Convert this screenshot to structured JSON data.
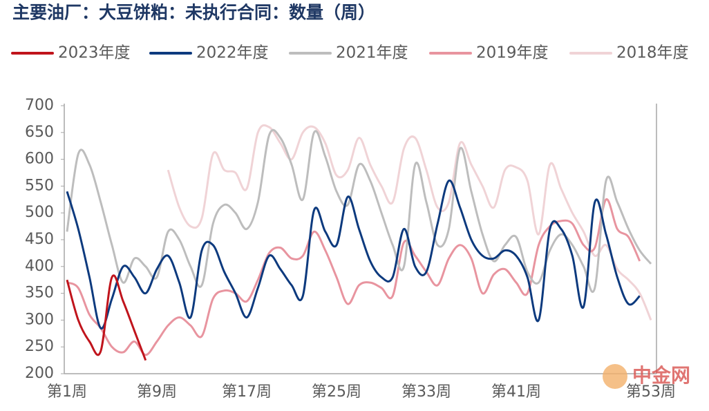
{
  "chart_data": {
    "type": "line",
    "title": "主要油厂：大豆饼粕：未执行合同：数量（周）",
    "watermark": "中金网",
    "categories": [
      "第1周",
      null,
      null,
      null,
      null,
      null,
      null,
      null,
      "第9周",
      null,
      null,
      null,
      null,
      null,
      null,
      null,
      "第17周",
      null,
      null,
      null,
      null,
      null,
      null,
      null,
      "第25周",
      null,
      null,
      null,
      null,
      null,
      null,
      null,
      "第33周",
      null,
      null,
      null,
      null,
      null,
      null,
      null,
      "第41周",
      null,
      null,
      null,
      null,
      null,
      null,
      null,
      null,
      null,
      null,
      null,
      "第53周"
    ],
    "ylim": [
      200,
      700
    ],
    "yticks": [
      200,
      250,
      300,
      350,
      400,
      450,
      500,
      550,
      600,
      650,
      700
    ],
    "series": [
      {
        "name": "2023年度",
        "color": "#c0141c",
        "values": [
          375,
          300,
          260,
          242,
          380,
          335,
          280,
          225,
          null,
          null,
          null,
          null,
          null,
          null,
          null,
          null,
          null,
          null,
          null,
          null,
          null,
          null,
          null,
          null,
          null,
          null,
          null,
          null,
          null,
          null,
          null,
          null,
          null,
          null,
          null,
          null,
          null,
          null,
          null,
          null,
          null,
          null,
          null,
          null,
          null,
          null,
          null,
          null,
          null,
          null,
          null,
          null,
          null
        ]
      },
      {
        "name": "2022年度",
        "color": "#0d3a7e",
        "values": [
          540,
          470,
          380,
          285,
          340,
          400,
          380,
          350,
          395,
          420,
          370,
          305,
          430,
          440,
          390,
          350,
          305,
          360,
          420,
          395,
          365,
          345,
          505,
          465,
          440,
          530,
          470,
          410,
          380,
          380,
          470,
          400,
          390,
          480,
          560,
          510,
          450,
          420,
          415,
          430,
          420,
          380,
          300,
          470,
          470,
          420,
          325,
          520,
          460,
          380,
          330,
          345,
          null
        ]
      },
      {
        "name": "2021年度",
        "color": "#bdbdbd",
        "values": [
          465,
          610,
          590,
          520,
          440,
          370,
          415,
          400,
          380,
          465,
          450,
          400,
          365,
          480,
          515,
          500,
          470,
          520,
          645,
          640,
          590,
          525,
          650,
          605,
          540,
          515,
          590,
          560,
          500,
          440,
          400,
          590,
          520,
          440,
          470,
          620,
          540,
          460,
          410,
          440,
          455,
          390,
          370,
          430,
          460,
          440,
          400,
          360,
          560,
          520,
          470,
          430,
          405
        ]
      },
      {
        "name": "2019年度",
        "color": "#e8949f",
        "values": [
          370,
          360,
          310,
          285,
          250,
          240,
          260,
          235,
          260,
          290,
          305,
          290,
          270,
          340,
          355,
          350,
          335,
          375,
          425,
          435,
          415,
          420,
          465,
          430,
          380,
          330,
          365,
          370,
          360,
          345,
          445,
          420,
          390,
          365,
          415,
          440,
          415,
          350,
          385,
          395,
          370,
          350,
          440,
          475,
          485,
          480,
          440,
          435,
          525,
          470,
          455,
          410,
          null
        ]
      },
      {
        "name": "2018年度",
        "color": "#f0d3d6",
        "values": [
          null,
          null,
          null,
          null,
          null,
          null,
          null,
          null,
          null,
          580,
          510,
          475,
          490,
          610,
          580,
          575,
          545,
          650,
          660,
          630,
          600,
          650,
          660,
          630,
          570,
          580,
          640,
          590,
          550,
          520,
          620,
          640,
          580,
          510,
          520,
          630,
          590,
          550,
          510,
          580,
          585,
          560,
          460,
          590,
          545,
          500,
          465,
          420,
          440,
          395,
          375,
          350,
          300
        ]
      }
    ]
  }
}
